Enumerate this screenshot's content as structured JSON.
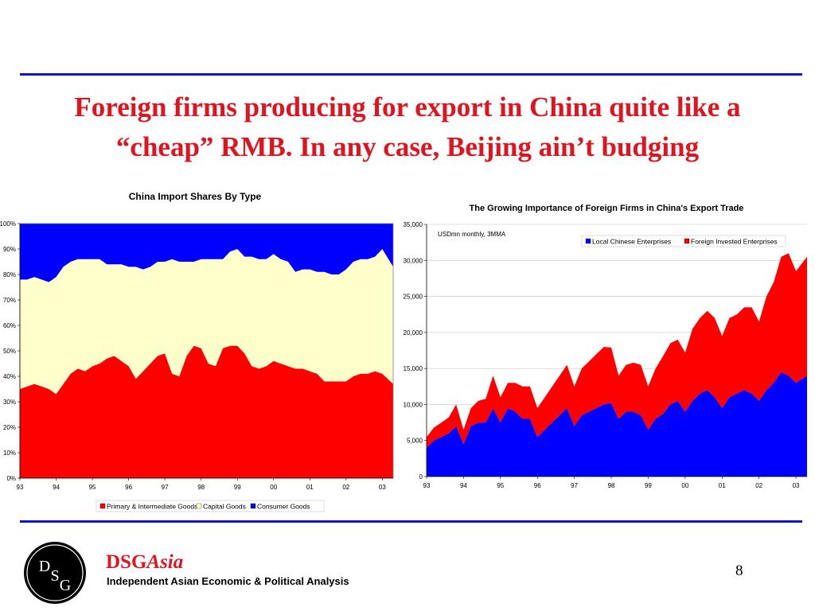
{
  "slide": {
    "title_line1": "Foreign firms producing for export in China quite like a",
    "title_line2": "“cheap” RMB. In any case, Beijing ain’t budging",
    "brand_prefix": "DSG",
    "brand_suffix": "Asia",
    "tagline": "Independent Asian Economic & Political Analysis",
    "logo_letters": [
      "D",
      "S",
      "G"
    ],
    "page_number": "8"
  },
  "colors": {
    "accent_rule": "#1414c8",
    "title": "#e0141e",
    "primary": "#ff0000",
    "capital": "#ffffcc",
    "consumer": "#0000ff",
    "local": "#0000ff",
    "foreign": "#ff0000"
  },
  "chart_data": [
    {
      "type": "area",
      "stacked": true,
      "percent": true,
      "title": "China Import Shares By Type",
      "x_ticks": [
        "93",
        "94",
        "95",
        "96",
        "97",
        "98",
        "99",
        "00",
        "01",
        "02",
        "03"
      ],
      "x_start": 93.0,
      "x_end": 103.3,
      "y_ticks": [
        "0%",
        "10%",
        "20%",
        "30%",
        "40%",
        "50%",
        "60%",
        "70%",
        "80%",
        "90%",
        "100%"
      ],
      "ylim": [
        0,
        100
      ],
      "grid": false,
      "legend_position": "bottom",
      "series": [
        {
          "name": "Primary & Intermediate Goods",
          "color": "#ff0000",
          "x": [
            93.0,
            93.2,
            93.4,
            93.6,
            93.8,
            94.0,
            94.2,
            94.4,
            94.6,
            94.8,
            95.0,
            95.2,
            95.4,
            95.6,
            95.8,
            96.0,
            96.2,
            96.4,
            96.6,
            96.8,
            97.0,
            97.2,
            97.4,
            97.6,
            97.8,
            98.0,
            98.2,
            98.4,
            98.6,
            98.8,
            99.0,
            99.2,
            99.4,
            99.6,
            99.8,
            100.0,
            100.2,
            100.4,
            100.6,
            100.8,
            101.0,
            101.2,
            101.4,
            101.6,
            101.8,
            102.0,
            102.2,
            102.4,
            102.6,
            102.8,
            103.0,
            103.3
          ],
          "values": [
            35,
            36,
            37,
            36,
            35,
            33,
            37,
            41,
            43,
            42,
            44,
            45,
            47,
            48,
            46,
            44,
            39,
            42,
            45,
            48,
            49,
            41,
            40,
            48,
            52,
            51,
            45,
            44,
            51,
            52,
            52,
            49,
            44,
            43,
            44,
            46,
            45,
            44,
            43,
            43,
            42,
            41,
            38,
            38,
            38,
            38,
            40,
            41,
            41,
            42,
            41,
            37
          ]
        },
        {
          "name": "Capital Goods",
          "color": "#ffffcc",
          "x": [
            93.0,
            93.2,
            93.4,
            93.6,
            93.8,
            94.0,
            94.2,
            94.4,
            94.6,
            94.8,
            95.0,
            95.2,
            95.4,
            95.6,
            95.8,
            96.0,
            96.2,
            96.4,
            96.6,
            96.8,
            97.0,
            97.2,
            97.4,
            97.6,
            97.8,
            98.0,
            98.2,
            98.4,
            98.6,
            98.8,
            99.0,
            99.2,
            99.4,
            99.6,
            99.8,
            100.0,
            100.2,
            100.4,
            100.6,
            100.8,
            101.0,
            101.2,
            101.4,
            101.6,
            101.8,
            102.0,
            102.2,
            102.4,
            102.6,
            102.8,
            103.0,
            103.3
          ],
          "values": [
            43,
            42,
            42,
            42,
            42,
            46,
            46,
            44,
            43,
            44,
            42,
            41,
            37,
            36,
            38,
            39,
            44,
            40,
            38,
            37,
            36,
            45,
            45,
            37,
            33,
            35,
            41,
            42,
            35,
            37,
            38,
            38,
            43,
            43,
            42,
            42,
            41,
            41,
            38,
            39,
            40,
            40,
            43,
            42,
            42,
            44,
            45,
            45,
            45,
            45,
            49,
            46
          ]
        },
        {
          "name": "Consumer Goods",
          "color": "#0000ff",
          "x": [
            93.0,
            93.2,
            93.4,
            93.6,
            93.8,
            94.0,
            94.2,
            94.4,
            94.6,
            94.8,
            95.0,
            95.2,
            95.4,
            95.6,
            95.8,
            96.0,
            96.2,
            96.4,
            96.6,
            96.8,
            97.0,
            97.2,
            97.4,
            97.6,
            97.8,
            98.0,
            98.2,
            98.4,
            98.6,
            98.8,
            99.0,
            99.2,
            99.4,
            99.6,
            99.8,
            100.0,
            100.2,
            100.4,
            100.6,
            100.8,
            101.0,
            101.2,
            101.4,
            101.6,
            101.8,
            102.0,
            102.2,
            102.4,
            102.6,
            102.8,
            103.0,
            103.3
          ],
          "values": [
            22,
            22,
            21,
            22,
            23,
            21,
            17,
            15,
            14,
            14,
            14,
            14,
            16,
            16,
            16,
            17,
            17,
            18,
            17,
            15,
            15,
            14,
            15,
            15,
            15,
            14,
            14,
            14,
            14,
            11,
            10,
            13,
            13,
            14,
            14,
            12,
            14,
            15,
            19,
            18,
            18,
            19,
            19,
            20,
            20,
            18,
            15,
            14,
            14,
            13,
            10,
            17
          ]
        }
      ]
    },
    {
      "type": "area",
      "stacked": true,
      "title": "The Growing Importance of Foreign Firms in China's Export Trade",
      "subtitle": "USDmn monthly, 3MMA",
      "x_ticks": [
        "93",
        "94",
        "95",
        "96",
        "97",
        "98",
        "99",
        "00",
        "01",
        "02",
        "03"
      ],
      "x_start": 93.0,
      "x_end": 103.3,
      "y_ticks": [
        "0",
        "5,000",
        "10,000",
        "15,000",
        "20,000",
        "25,000",
        "30,000",
        "35,000"
      ],
      "ylim": [
        0,
        35000
      ],
      "grid": true,
      "legend_position": "top-right",
      "series": [
        {
          "name": "Local Chinese Enterprises",
          "color": "#0000ff",
          "x": [
            93.0,
            93.2,
            93.4,
            93.6,
            93.8,
            94.0,
            94.2,
            94.4,
            94.6,
            94.8,
            95.0,
            95.2,
            95.4,
            95.6,
            95.8,
            96.0,
            96.2,
            96.4,
            96.6,
            96.8,
            97.0,
            97.2,
            97.4,
            97.6,
            97.8,
            98.0,
            98.2,
            98.4,
            98.6,
            98.8,
            99.0,
            99.2,
            99.4,
            99.6,
            99.8,
            100.0,
            100.2,
            100.4,
            100.6,
            100.8,
            101.0,
            101.2,
            101.4,
            101.6,
            101.8,
            102.0,
            102.2,
            102.4,
            102.6,
            102.8,
            103.0,
            103.3
          ],
          "values": [
            4000,
            5000,
            5500,
            6000,
            7000,
            4500,
            7000,
            7500,
            7500,
            9500,
            7500,
            9500,
            9000,
            8000,
            8000,
            5500,
            6500,
            7500,
            8500,
            9500,
            7000,
            8500,
            9000,
            9500,
            10000,
            10200,
            8000,
            9000,
            9000,
            8500,
            6500,
            8000,
            8700,
            10000,
            10500,
            9000,
            10500,
            11500,
            12000,
            11000,
            9500,
            11000,
            11500,
            12000,
            11500,
            10500,
            12000,
            13000,
            14500,
            14000,
            13000,
            14000
          ]
        },
        {
          "name": "Foreign Invested Enterprises",
          "color": "#ff0000",
          "x": [
            93.0,
            93.2,
            93.4,
            93.6,
            93.8,
            94.0,
            94.2,
            94.4,
            94.6,
            94.8,
            95.0,
            95.2,
            95.4,
            95.6,
            95.8,
            96.0,
            96.2,
            96.4,
            96.6,
            96.8,
            97.0,
            97.2,
            97.4,
            97.6,
            97.8,
            98.0,
            98.2,
            98.4,
            98.6,
            98.8,
            99.0,
            99.2,
            99.4,
            99.6,
            99.8,
            100.0,
            100.2,
            100.4,
            100.6,
            100.8,
            101.0,
            101.2,
            101.4,
            101.6,
            101.8,
            102.0,
            102.2,
            102.4,
            102.6,
            102.8,
            103.0,
            103.3
          ],
          "values": [
            1500,
            1800,
            2000,
            2200,
            3000,
            2000,
            2500,
            3000,
            3300,
            4500,
            3500,
            3500,
            4000,
            4500,
            4500,
            4000,
            4500,
            5000,
            5500,
            6000,
            5500,
            6500,
            7000,
            7500,
            8000,
            7700,
            6000,
            6500,
            6800,
            7000,
            6000,
            7000,
            8000,
            8500,
            8500,
            8200,
            10000,
            10500,
            11000,
            11000,
            10000,
            11000,
            11000,
            11500,
            12000,
            11000,
            13000,
            14000,
            16000,
            17000,
            15500,
            16500
          ]
        }
      ]
    }
  ]
}
